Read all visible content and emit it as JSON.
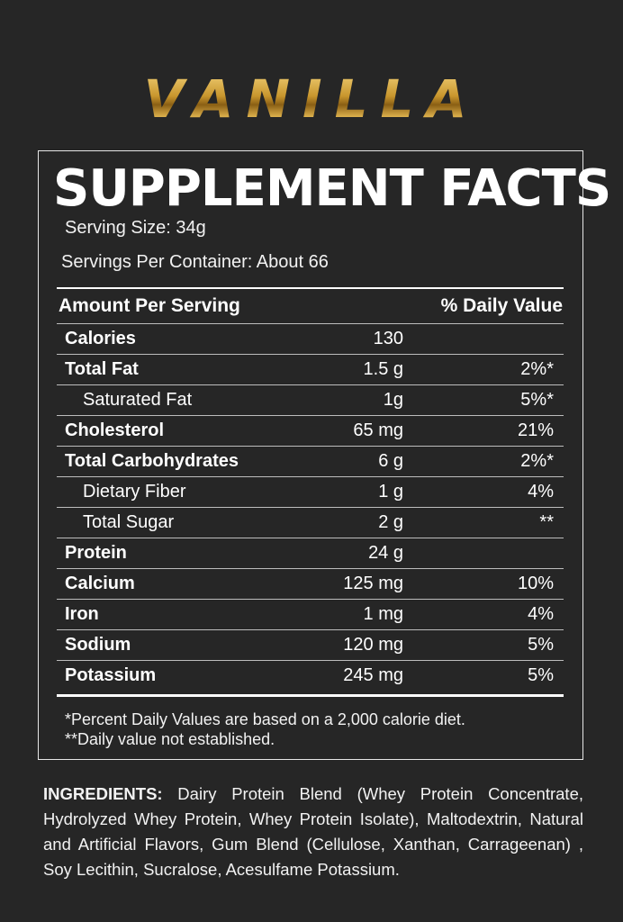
{
  "flavor": "VANILLA",
  "facts": {
    "title": "SUPPLEMENT FACTS",
    "serving_size": "Serving Size: 34g",
    "servings_per_container": "Servings Per Container: About 66",
    "header_left": "Amount Per Serving",
    "header_right": "% Daily Value",
    "rows": [
      {
        "name": "Calories",
        "amount": "130",
        "dv": "",
        "style": "bold"
      },
      {
        "name": "Total Fat",
        "amount": "1.5 g",
        "dv": "2%*",
        "style": "bold"
      },
      {
        "name": "Saturated Fat",
        "amount": "1g",
        "dv": "5%*",
        "style": "sub"
      },
      {
        "name": "Cholesterol",
        "amount": "65 mg",
        "dv": "21%",
        "style": "bold"
      },
      {
        "name": "Total Carbohydrates",
        "amount": "6 g",
        "dv": "2%*",
        "style": "bold"
      },
      {
        "name": "Dietary Fiber",
        "amount": "1 g",
        "dv": "4%",
        "style": "sub"
      },
      {
        "name": "Total Sugar",
        "amount": "2 g",
        "dv": "**",
        "style": "sub"
      },
      {
        "name": "Protein",
        "amount": "24 g",
        "dv": "",
        "style": "bold"
      },
      {
        "name": "Calcium",
        "amount": "125 mg",
        "dv": "10%",
        "style": "bold"
      },
      {
        "name": "Iron",
        "amount": "1 mg",
        "dv": "4%",
        "style": "bold"
      },
      {
        "name": "Sodium",
        "amount": "120 mg",
        "dv": "5%",
        "style": "bold"
      },
      {
        "name": "Potassium",
        "amount": "245 mg",
        "dv": "5%",
        "style": "bold"
      }
    ],
    "footnote1": "*Percent Daily Values are based on a 2,000 calorie diet.",
    "footnote2": "**Daily value not established."
  },
  "ingredients": {
    "label": "INGREDIENTS:",
    "text": " Dairy Protein Blend (Whey Protein Concentrate, Hydrolyzed Whey Protein, Whey Protein Isolate), Maltodextrin, Natural and Artificial Flavors, Gum Blend (Cellulose, Xanthan, Carrageenan) , Soy Lecithin, Sucralose, Acesulfame Potassium."
  },
  "colors": {
    "background": "#262626",
    "gold": "#c9992e",
    "text": "#ffffff"
  }
}
